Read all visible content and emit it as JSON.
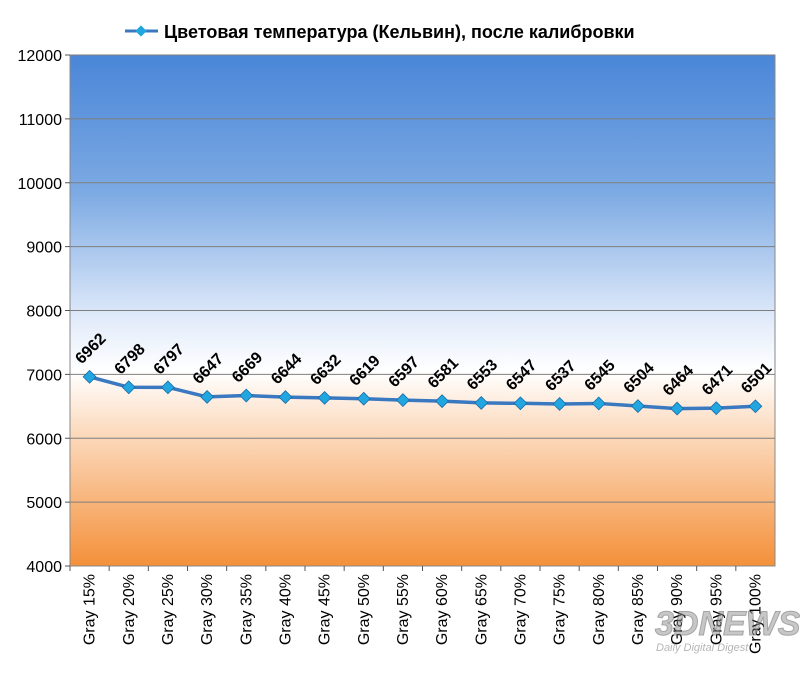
{
  "chart_data": {
    "type": "line",
    "title": "",
    "xlabel": "",
    "ylabel": "",
    "categories": [
      "Gray 15%",
      "Gray 20%",
      "Gray 25%",
      "Gray 30%",
      "Gray 35%",
      "Gray 40%",
      "Gray 45%",
      "Gray 50%",
      "Gray 55%",
      "Gray 60%",
      "Gray 65%",
      "Gray 70%",
      "Gray 75%",
      "Gray 80%",
      "Gray 85%",
      "Gray 90%",
      "Gray 95%",
      "Gray 100%"
    ],
    "series": [
      {
        "name": "Цветовая температура (Кельвин), после калибровки",
        "values": [
          6962,
          6798,
          6797,
          6647,
          6669,
          6644,
          6632,
          6619,
          6597,
          6581,
          6553,
          6547,
          6537,
          6545,
          6504,
          6464,
          6471,
          6501
        ],
        "color": "#3a78c0",
        "marker": "diamond",
        "marker_color": "#22a6e0"
      }
    ],
    "ylim": [
      4000,
      12000
    ],
    "yticks": [
      4000,
      5000,
      6000,
      7000,
      8000,
      9000,
      10000,
      11000,
      12000
    ],
    "grid": true,
    "legend": "top-center",
    "background_gradient": [
      "#4a86d8",
      "#ffffff",
      "#f4903a"
    ]
  },
  "watermark": {
    "logo_text": "3DNEWS",
    "tagline": "Daily Digital Digest"
  }
}
